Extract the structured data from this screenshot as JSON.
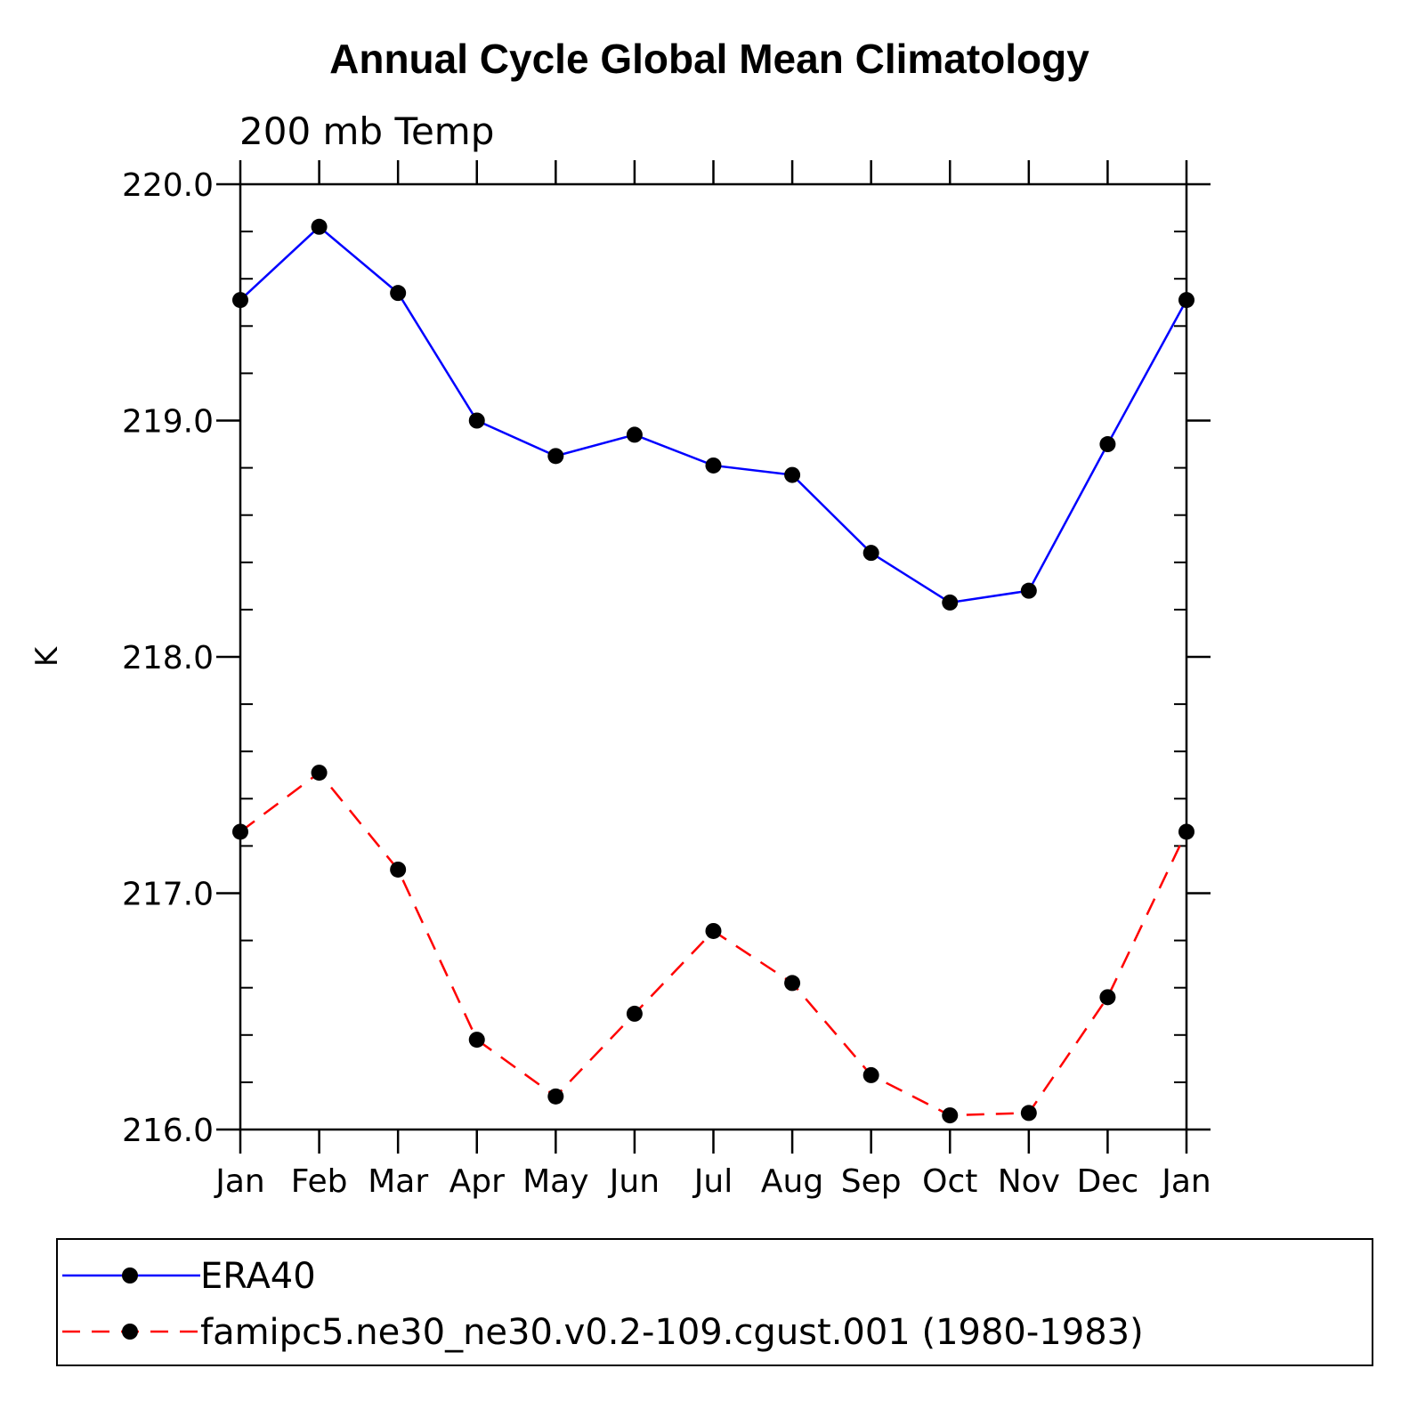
{
  "chart_data": {
    "type": "line",
    "title": "Annual Cycle Global Mean Climatology",
    "subtitle": "200 mb Temp",
    "xlabel": "",
    "ylabel": "K",
    "categories": [
      "Jan",
      "Feb",
      "Mar",
      "Apr",
      "May",
      "Jun",
      "Jul",
      "Aug",
      "Sep",
      "Oct",
      "Nov",
      "Dec",
      "Jan"
    ],
    "ylim": [
      216.0,
      220.0
    ],
    "yticks": [
      "216.0",
      "217.0",
      "218.0",
      "219.0",
      "220.0"
    ],
    "y_minor_step": 0.2,
    "grid": false,
    "legend_position": "bottom",
    "series": [
      {
        "name": "ERA40",
        "color": "#0000ff",
        "dash": "solid",
        "marker": "filled-circle",
        "values": [
          219.51,
          219.82,
          219.54,
          219.0,
          218.85,
          218.94,
          218.81,
          218.77,
          218.44,
          218.23,
          218.28,
          218.9,
          219.51
        ]
      },
      {
        "name": "famipc5.ne30_ne30.v0.2-109.cgust.001 (1980-1983)",
        "color": "#ff0000",
        "dash": "dashed",
        "marker": "filled-circle",
        "values": [
          217.26,
          217.51,
          217.1,
          216.38,
          216.14,
          216.49,
          216.84,
          216.62,
          216.23,
          216.06,
          216.07,
          216.56,
          217.26
        ]
      }
    ]
  }
}
